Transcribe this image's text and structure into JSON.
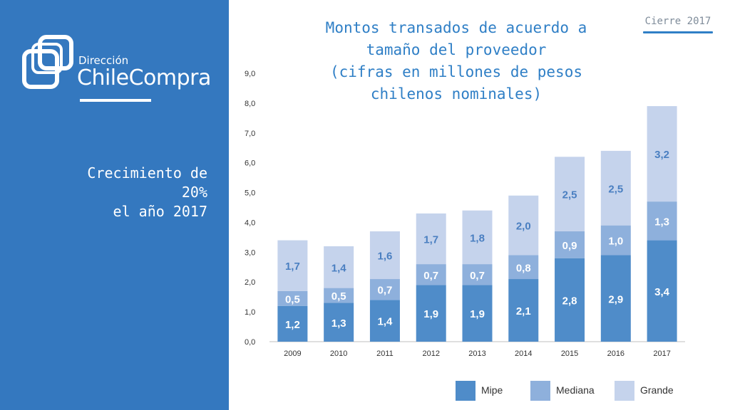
{
  "brand": {
    "line1": "Dirección",
    "line2": "ChileCompra"
  },
  "headline": [
    "Crecimiento de",
    "20%",
    "el año 2017"
  ],
  "badge": "Cierre 2017",
  "colors": {
    "sidebar": "#3478BF",
    "mipe": "#4F8CC9",
    "mediana": "#8EB0DC",
    "grande": "#C5D3EC",
    "accent": "#2F7FC6"
  },
  "chart_data": {
    "type": "bar",
    "stacked": true,
    "title_lines": [
      "Montos transados de acuerdo a",
      "tamaño del proveedor",
      "(cifras en millones de pesos",
      "chilenos nominales)"
    ],
    "categories": [
      "2009",
      "2010",
      "2011",
      "2012",
      "2013",
      "2014",
      "2015",
      "2016",
      "2017"
    ],
    "series": [
      {
        "name": "Mipe",
        "values": [
          1.2,
          1.3,
          1.4,
          1.9,
          1.9,
          2.1,
          2.8,
          2.9,
          3.4
        ],
        "labels": [
          "1,2",
          "1,3",
          "1,4",
          "1,9",
          "1,9",
          "2,1",
          "2,8",
          "2,9",
          "3,4"
        ]
      },
      {
        "name": "Mediana",
        "values": [
          0.5,
          0.5,
          0.7,
          0.7,
          0.7,
          0.8,
          0.9,
          1.0,
          1.3
        ],
        "labels": [
          "0,5",
          "0,5",
          "0,7",
          "0,7",
          "0,7",
          "0,8",
          "0,9",
          "1,0",
          "1,3"
        ]
      },
      {
        "name": "Grande",
        "values": [
          1.7,
          1.4,
          1.6,
          1.7,
          1.8,
          2.0,
          2.5,
          2.5,
          3.2
        ],
        "labels": [
          "1,7",
          "1,4",
          "1,6",
          "1,7",
          "1,8",
          "2,0",
          "2,5",
          "2,5",
          "3,2"
        ]
      }
    ],
    "ylim": [
      0,
      9
    ],
    "yticks": [
      "0,0",
      "1,0",
      "2,0",
      "3,0",
      "4,0",
      "5,0",
      "6,0",
      "7,0",
      "8,0",
      "9,0"
    ],
    "grid": false,
    "legend": "bottom-right"
  }
}
